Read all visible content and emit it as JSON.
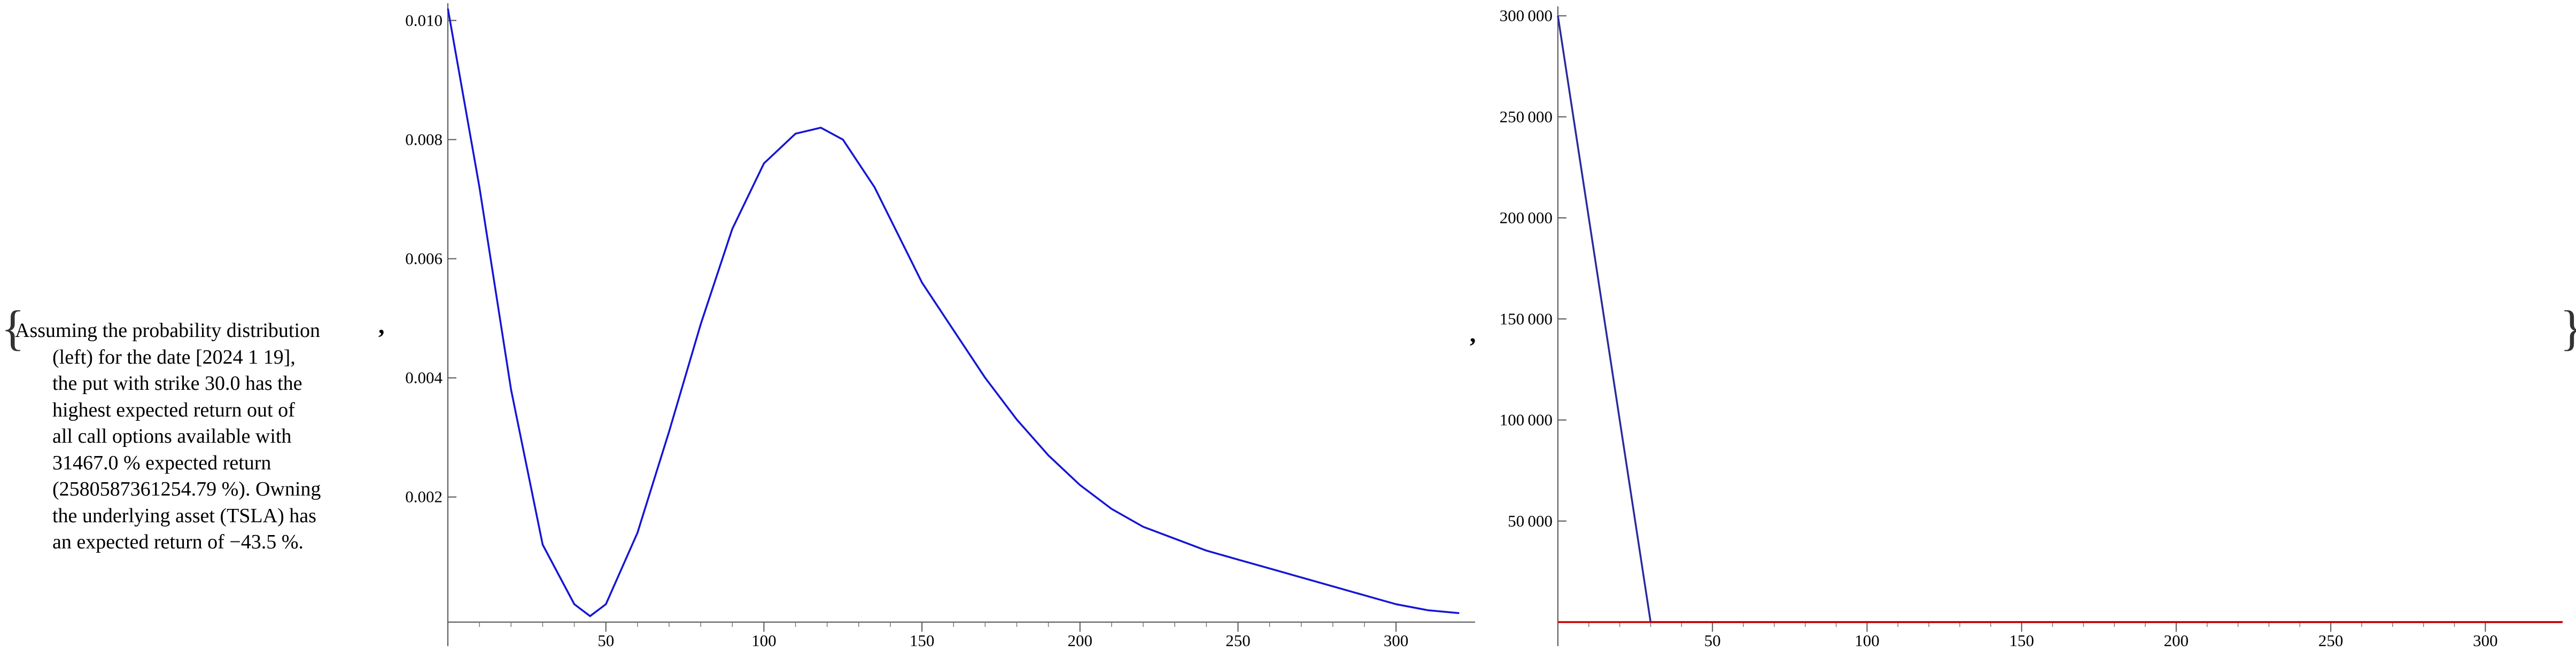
{
  "caption": {
    "lines": [
      "Assuming the probability distribution",
      "(left) for the date [2024 1 19],",
      "the put with strike 30.0 has the",
      "highest expected return out of",
      "all call options available with",
      "31467.0 % expected return",
      "(2580587361254.79 %). Owning",
      "the underlying asset (TSLA) has",
      "an expected return of −43.5 %."
    ]
  },
  "separators": {
    "comma": ",",
    "open_brace": "{",
    "close_brace": "}"
  },
  "chart_data": [
    {
      "type": "line",
      "title": "",
      "xlabel": "",
      "ylabel": "",
      "xlim": [
        0,
        325
      ],
      "ylim": [
        -0.0001,
        0.0102
      ],
      "grid": false,
      "x_ticks": [
        50,
        100,
        150,
        200,
        250,
        300
      ],
      "y_ticks": [
        0.002,
        0.004,
        0.006,
        0.008,
        0.01
      ],
      "y_tick_labels": [
        "0.002",
        "0.004",
        "0.006",
        "0.008",
        "0.010"
      ],
      "series": [
        {
          "color": "#1515d6",
          "x": [
            0,
            10,
            20,
            30,
            40,
            45,
            50,
            60,
            70,
            80,
            90,
            100,
            110,
            118,
            125,
            135,
            150,
            160,
            170,
            180,
            190,
            200,
            210,
            220,
            230,
            240,
            250,
            260,
            270,
            280,
            290,
            300,
            310,
            320
          ],
          "y": [
            0.0102,
            0.0072,
            0.0038,
            0.0012,
            0.0002,
            0.0,
            0.0002,
            0.0014,
            0.0031,
            0.0049,
            0.0065,
            0.0076,
            0.0081,
            0.0082,
            0.008,
            0.0072,
            0.0056,
            0.0048,
            0.004,
            0.0033,
            0.0027,
            0.0022,
            0.0018,
            0.0015,
            0.0013,
            0.0011,
            0.00095,
            0.0008,
            0.00065,
            0.0005,
            0.00035,
            0.0002,
            0.0001,
            5e-05
          ]
        }
      ]
    },
    {
      "type": "line",
      "title": "",
      "xlabel": "",
      "ylabel": "",
      "xlim": [
        0,
        325
      ],
      "ylim": [
        0,
        302000
      ],
      "grid": false,
      "x_ticks": [
        50,
        100,
        150,
        200,
        250,
        300
      ],
      "y_ticks": [
        50000,
        100000,
        150000,
        200000,
        250000,
        300000
      ],
      "y_tick_labels": [
        "50 000",
        "100 000",
        "150 000",
        "200 000",
        "250 000",
        "300 000"
      ],
      "series": [
        {
          "color": "#2a2aa0",
          "x": [
            0,
            30,
            325
          ],
          "y": [
            300000,
            0,
            0
          ]
        },
        {
          "color": "#cc0000",
          "x": [
            0,
            325
          ],
          "y": [
            0,
            0
          ]
        }
      ]
    }
  ]
}
